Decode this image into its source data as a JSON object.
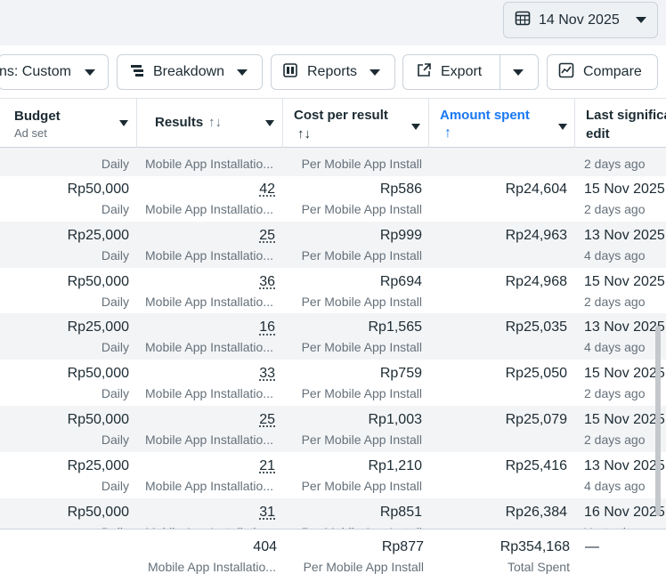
{
  "date_picker": {
    "label": "14 Nov 2025"
  },
  "toolbar": {
    "columns": "ns: Custom",
    "breakdown": "Breakdown",
    "reports": "Reports",
    "export": "Export",
    "compare": "Compare"
  },
  "columns": {
    "budget": {
      "title": "Budget",
      "sub": "Ad set"
    },
    "results": {
      "title": "Results",
      "sort": "↑↓"
    },
    "cost": {
      "title": "Cost per result",
      "sort": "↑↓"
    },
    "amount": {
      "title": "Amount spent",
      "sort": "↑"
    },
    "last": {
      "title": "Last significa",
      "sub": "edit"
    }
  },
  "rows": [
    {
      "budget": "Rp50,000",
      "period": "Daily",
      "results": "42",
      "results_type": "Mobile App Installatio...",
      "cost": "Rp586",
      "cost_type": "Per Mobile App Install",
      "amount": "Rp24,604",
      "last": "15 Nov 2025,",
      "last_sub": "2 days ago"
    },
    {
      "budget": "Rp25,000",
      "period": "Daily",
      "results": "25",
      "results_type": "Mobile App Installatio...",
      "cost": "Rp999",
      "cost_type": "Per Mobile App Install",
      "amount": "Rp24,963",
      "last": "13 Nov 2025,",
      "last_sub": "4 days ago"
    },
    {
      "budget": "Rp50,000",
      "period": "Daily",
      "results": "36",
      "results_type": "Mobile App Installatio...",
      "cost": "Rp694",
      "cost_type": "Per Mobile App Install",
      "amount": "Rp24,968",
      "last": "15 Nov 2025,",
      "last_sub": "2 days ago"
    },
    {
      "budget": "Rp25,000",
      "period": "Daily",
      "results": "16",
      "results_type": "Mobile App Installatio...",
      "cost": "Rp1,565",
      "cost_type": "Per Mobile App Install",
      "amount": "Rp25,035",
      "last": "13 Nov 2025,",
      "last_sub": "4 days ago"
    },
    {
      "budget": "Rp50,000",
      "period": "Daily",
      "results": "33",
      "results_type": "Mobile App Installatio...",
      "cost": "Rp759",
      "cost_type": "Per Mobile App Install",
      "amount": "Rp25,050",
      "last": "15 Nov 2025,",
      "last_sub": "2 days ago"
    },
    {
      "budget": "Rp50,000",
      "period": "Daily",
      "results": "25",
      "results_type": "Mobile App Installatio...",
      "cost": "Rp1,003",
      "cost_type": "Per Mobile App Install",
      "amount": "Rp25,079",
      "last": "15 Nov 2025,",
      "last_sub": "2 days ago"
    },
    {
      "budget": "Rp25,000",
      "period": "Daily",
      "results": "21",
      "results_type": "Mobile App Installatio...",
      "cost": "Rp1,210",
      "cost_type": "Per Mobile App Install",
      "amount": "Rp25,416",
      "last": "13 Nov 2025,",
      "last_sub": "4 days ago"
    },
    {
      "budget": "Rp50,000",
      "period": "Daily",
      "results": "31",
      "results_type": "Mobile App Installatio...",
      "cost": "Rp851",
      "cost_type": "Per Mobile App Install",
      "amount": "Rp26,384",
      "last": "16 Nov 2025,",
      "last_sub": "Yesterday"
    }
  ],
  "partial_top_row": {
    "period": "Daily",
    "results_type": "Mobile App Installatio...",
    "cost_type": "Per Mobile App Install",
    "last_sub": "2 days ago"
  },
  "totals": {
    "results": "404",
    "results_type": "Mobile App Installatio...",
    "cost": "Rp877",
    "cost_type": "Per Mobile App Install",
    "amount": "Rp354,168",
    "amount_type": "Total Spent",
    "last": "—"
  }
}
